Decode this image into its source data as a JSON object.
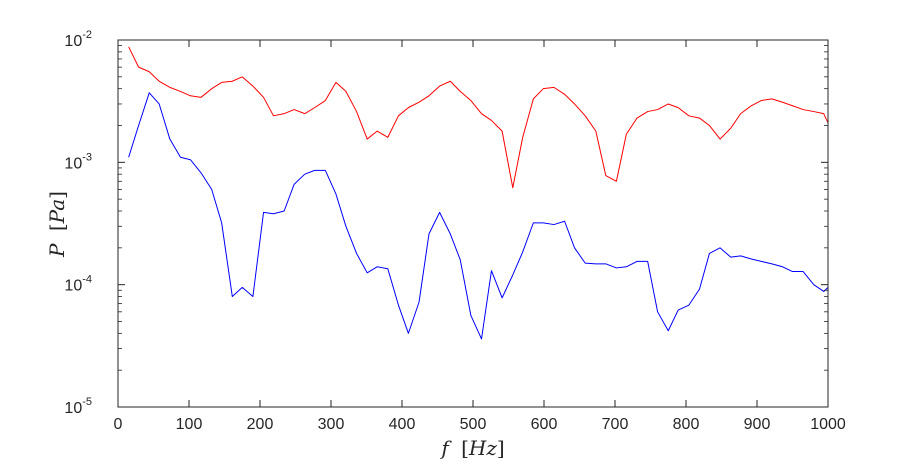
{
  "chart_data": {
    "type": "line",
    "title": "",
    "xlabel": {
      "var": "f",
      "unit": "Hz"
    },
    "ylabel": {
      "var": "P",
      "unit": "Pa"
    },
    "xlim": [
      0,
      1000
    ],
    "ylim": [
      1e-05,
      0.01
    ],
    "yscale": "log",
    "grid": false,
    "x_ticks": [
      0,
      100,
      200,
      300,
      400,
      500,
      600,
      700,
      800,
      900,
      1000
    ],
    "x_tick_labels": [
      "0",
      "100",
      "200",
      "300",
      "400",
      "500",
      "600",
      "700",
      "800",
      "900",
      "1000"
    ],
    "y_ticks": [
      {
        "value": 0.01,
        "base": "10",
        "exp": "-2"
      },
      {
        "value": 0.001,
        "base": "10",
        "exp": "-3"
      },
      {
        "value": 0.0001,
        "base": "10",
        "exp": "-4"
      },
      {
        "value": 1e-05,
        "base": "10",
        "exp": "-5"
      }
    ],
    "series": [
      {
        "color": "#ff0000",
        "x": [
          15,
          29,
          44,
          58,
          73,
          88,
          102,
          117,
          132,
          146,
          161,
          175,
          190,
          205,
          219,
          234,
          248,
          263,
          277,
          292,
          307,
          321,
          336,
          351,
          365,
          380,
          395,
          409,
          424,
          438,
          453,
          468,
          482,
          497,
          512,
          526,
          541,
          556,
          570,
          585,
          599,
          614,
          629,
          643,
          658,
          673,
          687,
          702,
          716,
          731,
          746,
          760,
          775,
          789,
          804,
          819,
          833,
          848,
          863,
          877,
          892,
          906,
          921,
          936,
          950,
          965,
          980,
          994,
          1000
        ],
        "values": [
          0.0088,
          0.006,
          0.0055,
          0.0046,
          0.0041,
          0.0038,
          0.0035,
          0.0034,
          0.004,
          0.0045,
          0.0046,
          0.005,
          0.0042,
          0.0034,
          0.0024,
          0.0025,
          0.0027,
          0.0025,
          0.0028,
          0.0032,
          0.0045,
          0.0038,
          0.0026,
          0.00155,
          0.0018,
          0.0016,
          0.0024,
          0.0028,
          0.0031,
          0.0035,
          0.0042,
          0.0046,
          0.0038,
          0.0032,
          0.0025,
          0.0022,
          0.0018,
          0.00062,
          0.0016,
          0.0033,
          0.004,
          0.0041,
          0.0036,
          0.003,
          0.0024,
          0.0018,
          0.00078,
          0.0007,
          0.0017,
          0.0023,
          0.0026,
          0.0027,
          0.003,
          0.0028,
          0.0024,
          0.0023,
          0.002,
          0.00155,
          0.0019,
          0.0025,
          0.0029,
          0.0032,
          0.0033,
          0.0031,
          0.0029,
          0.0027,
          0.0026,
          0.0025,
          0.0021
        ]
      },
      {
        "color": "#0000ff",
        "x": [
          15,
          29,
          44,
          58,
          73,
          88,
          102,
          117,
          132,
          146,
          161,
          175,
          190,
          205,
          219,
          234,
          248,
          263,
          277,
          292,
          307,
          321,
          336,
          351,
          365,
          380,
          395,
          409,
          424,
          438,
          453,
          468,
          482,
          497,
          512,
          526,
          541,
          556,
          570,
          585,
          599,
          614,
          629,
          643,
          658,
          673,
          687,
          702,
          716,
          731,
          746,
          760,
          775,
          789,
          804,
          819,
          833,
          848,
          863,
          877,
          892,
          906,
          921,
          936,
          950,
          965,
          980,
          994,
          1000
        ],
        "values": [
          0.0011,
          0.002,
          0.0037,
          0.003,
          0.00155,
          0.0011,
          0.00105,
          0.00082,
          0.0006,
          0.00032,
          8e-05,
          9.5e-05,
          8e-05,
          0.00039,
          0.00038,
          0.0004,
          0.00066,
          0.0008,
          0.00086,
          0.00086,
          0.00055,
          0.0003,
          0.00018,
          0.000125,
          0.00014,
          0.000135,
          6.8e-05,
          4e-05,
          7.2e-05,
          0.00026,
          0.00039,
          0.00026,
          0.00016,
          5.6e-05,
          3.6e-05,
          0.00013,
          7.8e-05,
          0.00012,
          0.000185,
          0.00032,
          0.00032,
          0.00031,
          0.00033,
          0.0002,
          0.00015,
          0.000148,
          0.000148,
          0.000137,
          0.00014,
          0.000155,
          0.000155,
          6e-05,
          4.2e-05,
          6.2e-05,
          6.8e-05,
          9.2e-05,
          0.00018,
          0.0002,
          0.000168,
          0.000172,
          0.000162,
          0.000155,
          0.000148,
          0.00014,
          0.000128,
          0.000128,
          0.0001,
          8.8e-05,
          9.5e-05
        ]
      }
    ]
  }
}
